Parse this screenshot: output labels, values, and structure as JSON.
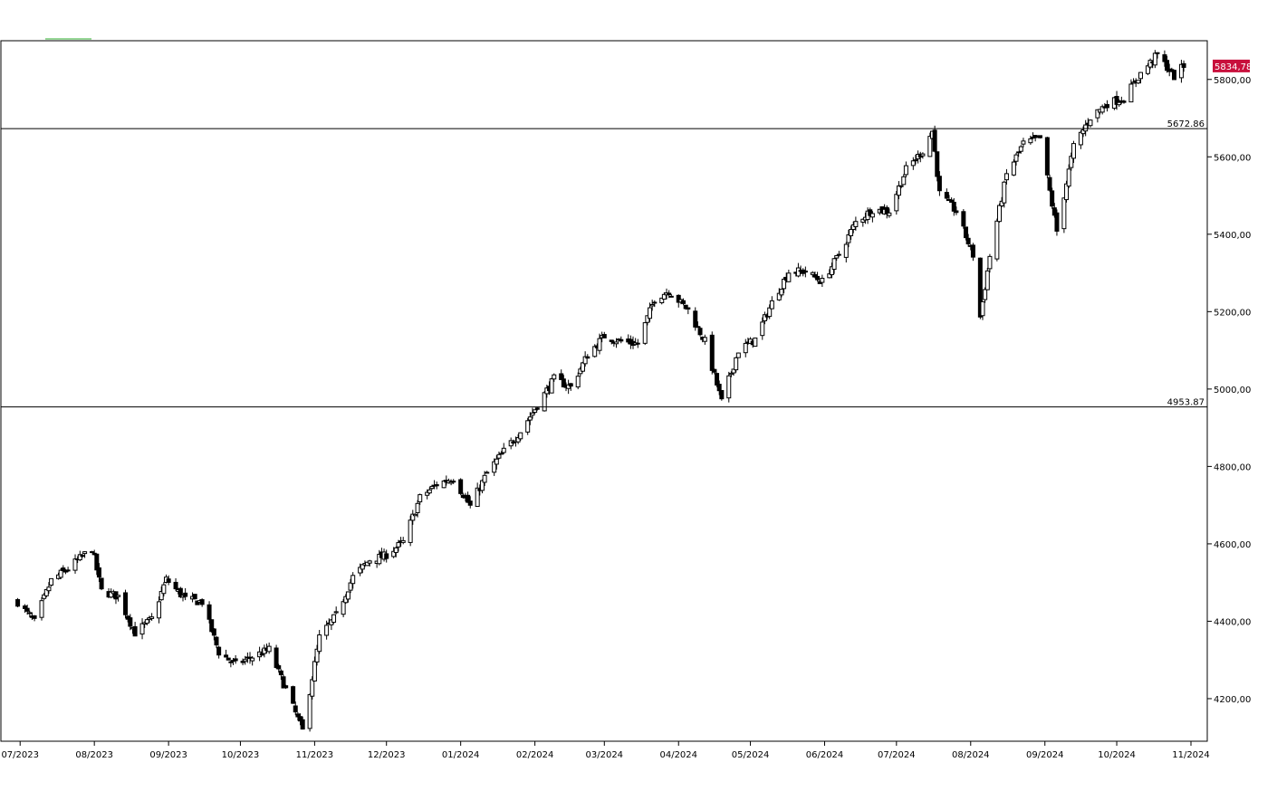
{
  "chart_data": {
    "type": "candlestick",
    "x_labels": [
      "07/2023",
      "08/2023",
      "09/2023",
      "10/2023",
      "11/2023",
      "12/2023",
      "01/2024",
      "02/2024",
      "03/2024",
      "04/2024",
      "05/2024",
      "06/2024",
      "07/2024",
      "08/2024",
      "09/2024",
      "10/2024",
      "11/2024"
    ],
    "y_ticks": [
      4200,
      4400,
      4600,
      4800,
      5000,
      5200,
      5400,
      5600,
      5800
    ],
    "y_tick_labels": [
      "4200,00",
      "4400,00",
      "4600,00",
      "4800,00",
      "5000,00",
      "5200,00",
      "5400,00",
      "5600,00",
      "5800,00"
    ],
    "ylim": [
      4090,
      5900
    ],
    "horizontal_lines": [
      {
        "value": 5672.86,
        "label": "5672.86"
      },
      {
        "value": 4953.87,
        "label": "4953.87"
      }
    ],
    "last_price": {
      "value": 5834.78,
      "label": "5834,78"
    },
    "close_anchors": [
      [
        "2023-06-30",
        4450
      ],
      [
        "2023-07-07",
        4398
      ],
      [
        "2023-07-14",
        4505
      ],
      [
        "2023-07-21",
        4536
      ],
      [
        "2023-07-31",
        4589
      ],
      [
        "2023-08-04",
        4478
      ],
      [
        "2023-08-11",
        4464
      ],
      [
        "2023-08-18",
        4370
      ],
      [
        "2023-08-25",
        4406
      ],
      [
        "2023-08-31",
        4508
      ],
      [
        "2023-09-08",
        4457
      ],
      [
        "2023-09-15",
        4450
      ],
      [
        "2023-09-22",
        4320
      ],
      [
        "2023-09-29",
        4288
      ],
      [
        "2023-10-06",
        4308
      ],
      [
        "2023-10-13",
        4327
      ],
      [
        "2023-10-20",
        4224
      ],
      [
        "2023-10-27",
        4117
      ],
      [
        "2023-11-03",
        4358
      ],
      [
        "2023-11-10",
        4415
      ],
      [
        "2023-11-17",
        4514
      ],
      [
        "2023-11-24",
        4559
      ],
      [
        "2023-11-30",
        4568
      ],
      [
        "2023-12-08",
        4604
      ],
      [
        "2023-12-15",
        4719
      ],
      [
        "2023-12-22",
        4754
      ],
      [
        "2023-12-29",
        4770
      ],
      [
        "2024-01-05",
        4697
      ],
      [
        "2024-01-12",
        4783
      ],
      [
        "2024-01-19",
        4839
      ],
      [
        "2024-01-26",
        4891
      ],
      [
        "2024-02-02",
        4958
      ],
      [
        "2024-02-09",
        5026
      ],
      [
        "2024-02-16",
        5005
      ],
      [
        "2024-02-23",
        5088
      ],
      [
        "2024-03-01",
        5137
      ],
      [
        "2024-03-08",
        5123
      ],
      [
        "2024-03-15",
        5117
      ],
      [
        "2024-03-22",
        5234
      ],
      [
        "2024-03-28",
        5254
      ],
      [
        "2024-04-05",
        5204
      ],
      [
        "2024-04-12",
        5123
      ],
      [
        "2024-04-19",
        4967
      ],
      [
        "2024-04-26",
        5100
      ],
      [
        "2024-05-03",
        5128
      ],
      [
        "2024-05-10",
        5223
      ],
      [
        "2024-05-17",
        5303
      ],
      [
        "2024-05-24",
        5304
      ],
      [
        "2024-05-31",
        5277
      ],
      [
        "2024-06-07",
        5347
      ],
      [
        "2024-06-14",
        5431
      ],
      [
        "2024-06-21",
        5464
      ],
      [
        "2024-06-28",
        5460
      ],
      [
        "2024-07-05",
        5567
      ],
      [
        "2024-07-12",
        5615
      ],
      [
        "2024-07-16",
        5667
      ],
      [
        "2024-07-19",
        5505
      ],
      [
        "2024-07-26",
        5459
      ],
      [
        "2024-08-02",
        5346
      ],
      [
        "2024-08-05",
        5186
      ],
      [
        "2024-08-09",
        5344
      ],
      [
        "2024-08-16",
        5554
      ],
      [
        "2024-08-23",
        5634
      ],
      [
        "2024-08-30",
        5648
      ],
      [
        "2024-09-06",
        5408
      ],
      [
        "2024-09-13",
        5626
      ],
      [
        "2024-09-20",
        5702
      ],
      [
        "2024-09-27",
        5738
      ],
      [
        "2024-10-04",
        5751
      ],
      [
        "2024-10-11",
        5815
      ],
      [
        "2024-10-18",
        5864
      ],
      [
        "2024-10-25",
        5808
      ],
      [
        "2024-10-29",
        5834.78
      ]
    ]
  }
}
